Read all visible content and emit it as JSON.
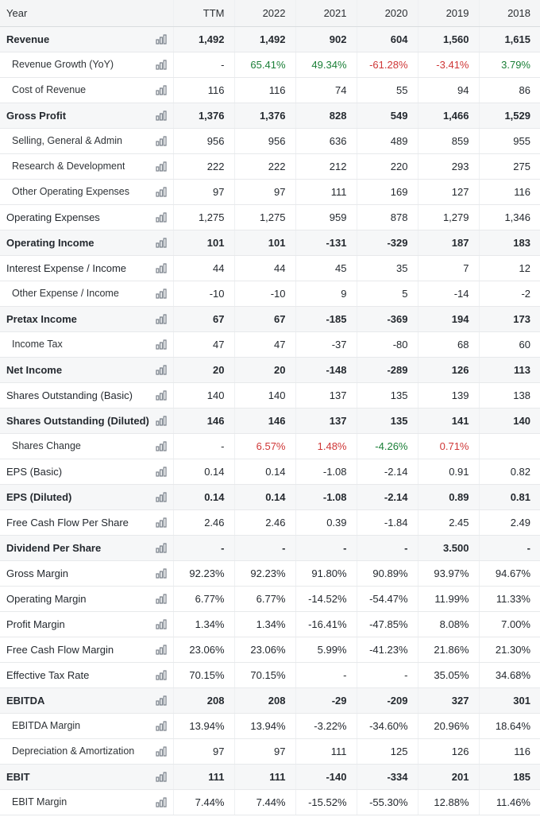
{
  "colors": {
    "positive": "#1a7f37",
    "negative": "#cf3737"
  },
  "table": {
    "header": [
      "Year",
      "TTM",
      "2022",
      "2021",
      "2020",
      "2019",
      "2018"
    ],
    "rows": [
      {
        "label": "Revenue",
        "style": "bold",
        "values": [
          "1,492",
          "1,492",
          "902",
          "604",
          "1,560",
          "1,615"
        ]
      },
      {
        "label": "Revenue Growth (YoY)",
        "style": "indent",
        "values": [
          "-",
          "65.41%",
          "49.34%",
          "-61.28%",
          "-3.41%",
          "3.79%"
        ],
        "cell_colors": [
          "",
          "pos",
          "pos",
          "neg",
          "neg",
          "pos"
        ]
      },
      {
        "label": "Cost of Revenue",
        "style": "indent",
        "values": [
          "116",
          "116",
          "74",
          "55",
          "94",
          "86"
        ]
      },
      {
        "label": "Gross Profit",
        "style": "bold",
        "values": [
          "1,376",
          "1,376",
          "828",
          "549",
          "1,466",
          "1,529"
        ]
      },
      {
        "label": "Selling, General & Admin",
        "style": "indent",
        "values": [
          "956",
          "956",
          "636",
          "489",
          "859",
          "955"
        ]
      },
      {
        "label": "Research & Development",
        "style": "indent",
        "values": [
          "222",
          "222",
          "212",
          "220",
          "293",
          "275"
        ]
      },
      {
        "label": "Other Operating Expenses",
        "style": "indent",
        "values": [
          "97",
          "97",
          "111",
          "169",
          "127",
          "116"
        ]
      },
      {
        "label": "Operating Expenses",
        "style": "plain",
        "values": [
          "1,275",
          "1,275",
          "959",
          "878",
          "1,279",
          "1,346"
        ]
      },
      {
        "label": "Operating Income",
        "style": "bold",
        "values": [
          "101",
          "101",
          "-131",
          "-329",
          "187",
          "183"
        ]
      },
      {
        "label": "Interest Expense / Income",
        "style": "plain",
        "values": [
          "44",
          "44",
          "45",
          "35",
          "7",
          "12"
        ]
      },
      {
        "label": "Other Expense / Income",
        "style": "indent",
        "values": [
          "-10",
          "-10",
          "9",
          "5",
          "-14",
          "-2"
        ]
      },
      {
        "label": "Pretax Income",
        "style": "bold",
        "values": [
          "67",
          "67",
          "-185",
          "-369",
          "194",
          "173"
        ]
      },
      {
        "label": "Income Tax",
        "style": "indent",
        "values": [
          "47",
          "47",
          "-37",
          "-80",
          "68",
          "60"
        ]
      },
      {
        "label": "Net Income",
        "style": "bold",
        "values": [
          "20",
          "20",
          "-148",
          "-289",
          "126",
          "113"
        ]
      },
      {
        "label": "Shares Outstanding (Basic)",
        "style": "plain",
        "values": [
          "140",
          "140",
          "137",
          "135",
          "139",
          "138"
        ]
      },
      {
        "label": "Shares Outstanding (Diluted)",
        "style": "bold",
        "values": [
          "146",
          "146",
          "137",
          "135",
          "141",
          "140"
        ]
      },
      {
        "label": "Shares Change",
        "style": "indent",
        "values": [
          "-",
          "6.57%",
          "1.48%",
          "-4.26%",
          "0.71%",
          ""
        ],
        "cell_colors": [
          "",
          "neg",
          "neg",
          "pos",
          "neg",
          ""
        ]
      },
      {
        "label": "EPS (Basic)",
        "style": "plain",
        "values": [
          "0.14",
          "0.14",
          "-1.08",
          "-2.14",
          "0.91",
          "0.82"
        ]
      },
      {
        "label": "EPS (Diluted)",
        "style": "bold",
        "values": [
          "0.14",
          "0.14",
          "-1.08",
          "-2.14",
          "0.89",
          "0.81"
        ]
      },
      {
        "label": "Free Cash Flow Per Share",
        "style": "plain",
        "values": [
          "2.46",
          "2.46",
          "0.39",
          "-1.84",
          "2.45",
          "2.49"
        ]
      },
      {
        "label": "Dividend Per Share",
        "style": "bold",
        "values": [
          "-",
          "-",
          "-",
          "-",
          "3.500",
          "-"
        ]
      },
      {
        "label": "Gross Margin",
        "style": "plain",
        "values": [
          "92.23%",
          "92.23%",
          "91.80%",
          "90.89%",
          "93.97%",
          "94.67%"
        ]
      },
      {
        "label": "Operating Margin",
        "style": "plain",
        "values": [
          "6.77%",
          "6.77%",
          "-14.52%",
          "-54.47%",
          "11.99%",
          "11.33%"
        ]
      },
      {
        "label": "Profit Margin",
        "style": "plain",
        "values": [
          "1.34%",
          "1.34%",
          "-16.41%",
          "-47.85%",
          "8.08%",
          "7.00%"
        ]
      },
      {
        "label": "Free Cash Flow Margin",
        "style": "plain",
        "values": [
          "23.06%",
          "23.06%",
          "5.99%",
          "-41.23%",
          "21.86%",
          "21.30%"
        ]
      },
      {
        "label": "Effective Tax Rate",
        "style": "plain",
        "values": [
          "70.15%",
          "70.15%",
          "-",
          "-",
          "35.05%",
          "34.68%"
        ]
      },
      {
        "label": "EBITDA",
        "style": "bold",
        "values": [
          "208",
          "208",
          "-29",
          "-209",
          "327",
          "301"
        ]
      },
      {
        "label": "EBITDA Margin",
        "style": "indent",
        "values": [
          "13.94%",
          "13.94%",
          "-3.22%",
          "-34.60%",
          "20.96%",
          "18.64%"
        ]
      },
      {
        "label": "Depreciation & Amortization",
        "style": "indent",
        "values": [
          "97",
          "97",
          "111",
          "125",
          "126",
          "116"
        ]
      },
      {
        "label": "EBIT",
        "style": "bold",
        "values": [
          "111",
          "111",
          "-140",
          "-334",
          "201",
          "185"
        ]
      },
      {
        "label": "EBIT Margin",
        "style": "indent",
        "values": [
          "7.44%",
          "7.44%",
          "-15.52%",
          "-55.30%",
          "12.88%",
          "11.46%"
        ]
      }
    ]
  }
}
